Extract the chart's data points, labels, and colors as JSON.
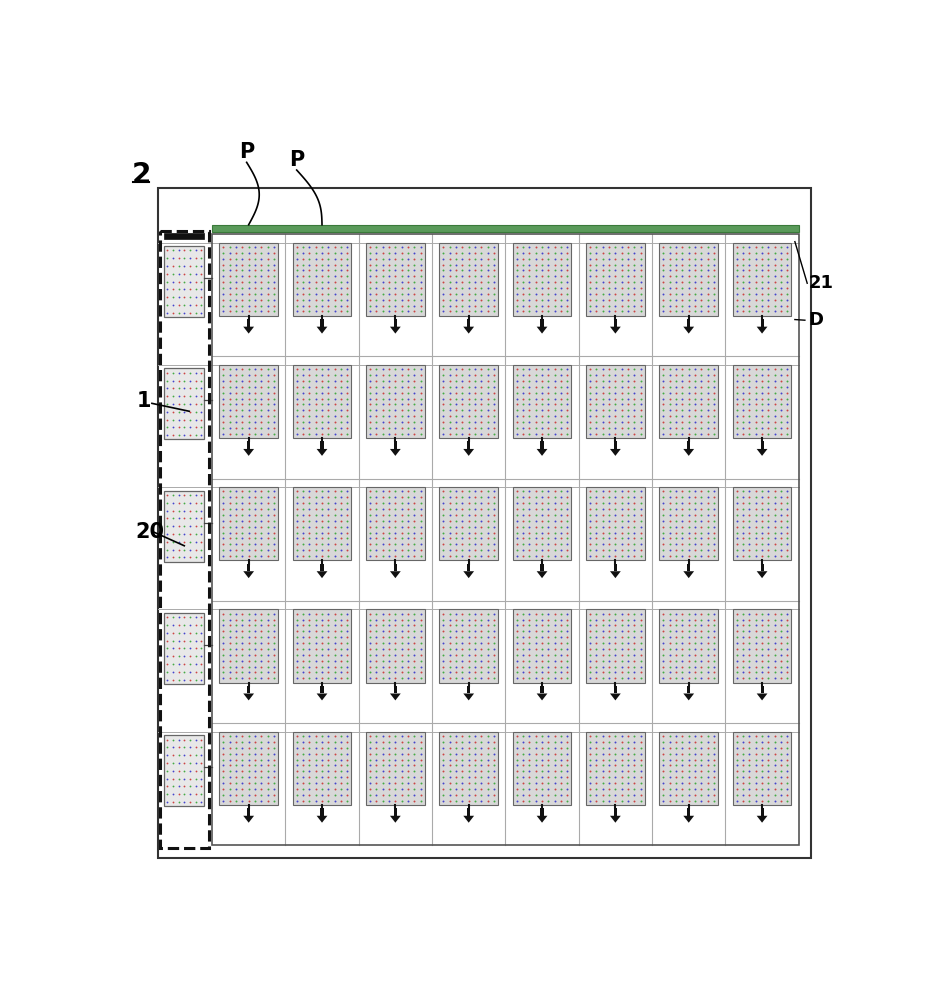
{
  "bg_color": "#ffffff",
  "n_rows": 5,
  "n_cols": 8,
  "label_2": "2",
  "label_1": "1",
  "label_20": "20",
  "label_21": "21",
  "label_D": "D",
  "label_P1": "P",
  "label_P2": "P",
  "cell_dot_color_r": "#cc4444",
  "cell_dot_color_g": "#44aa44",
  "cell_dot_color_b": "#4444cc",
  "cell_bg": "#d8d8d8",
  "sr_cell_bg": "#e8e8e8",
  "gate_strip_color": "#5a9a5a",
  "arrow_color": "#111111",
  "grid_color": "#aaaaaa",
  "border_color": "#333333",
  "dashed_color": "#111111"
}
